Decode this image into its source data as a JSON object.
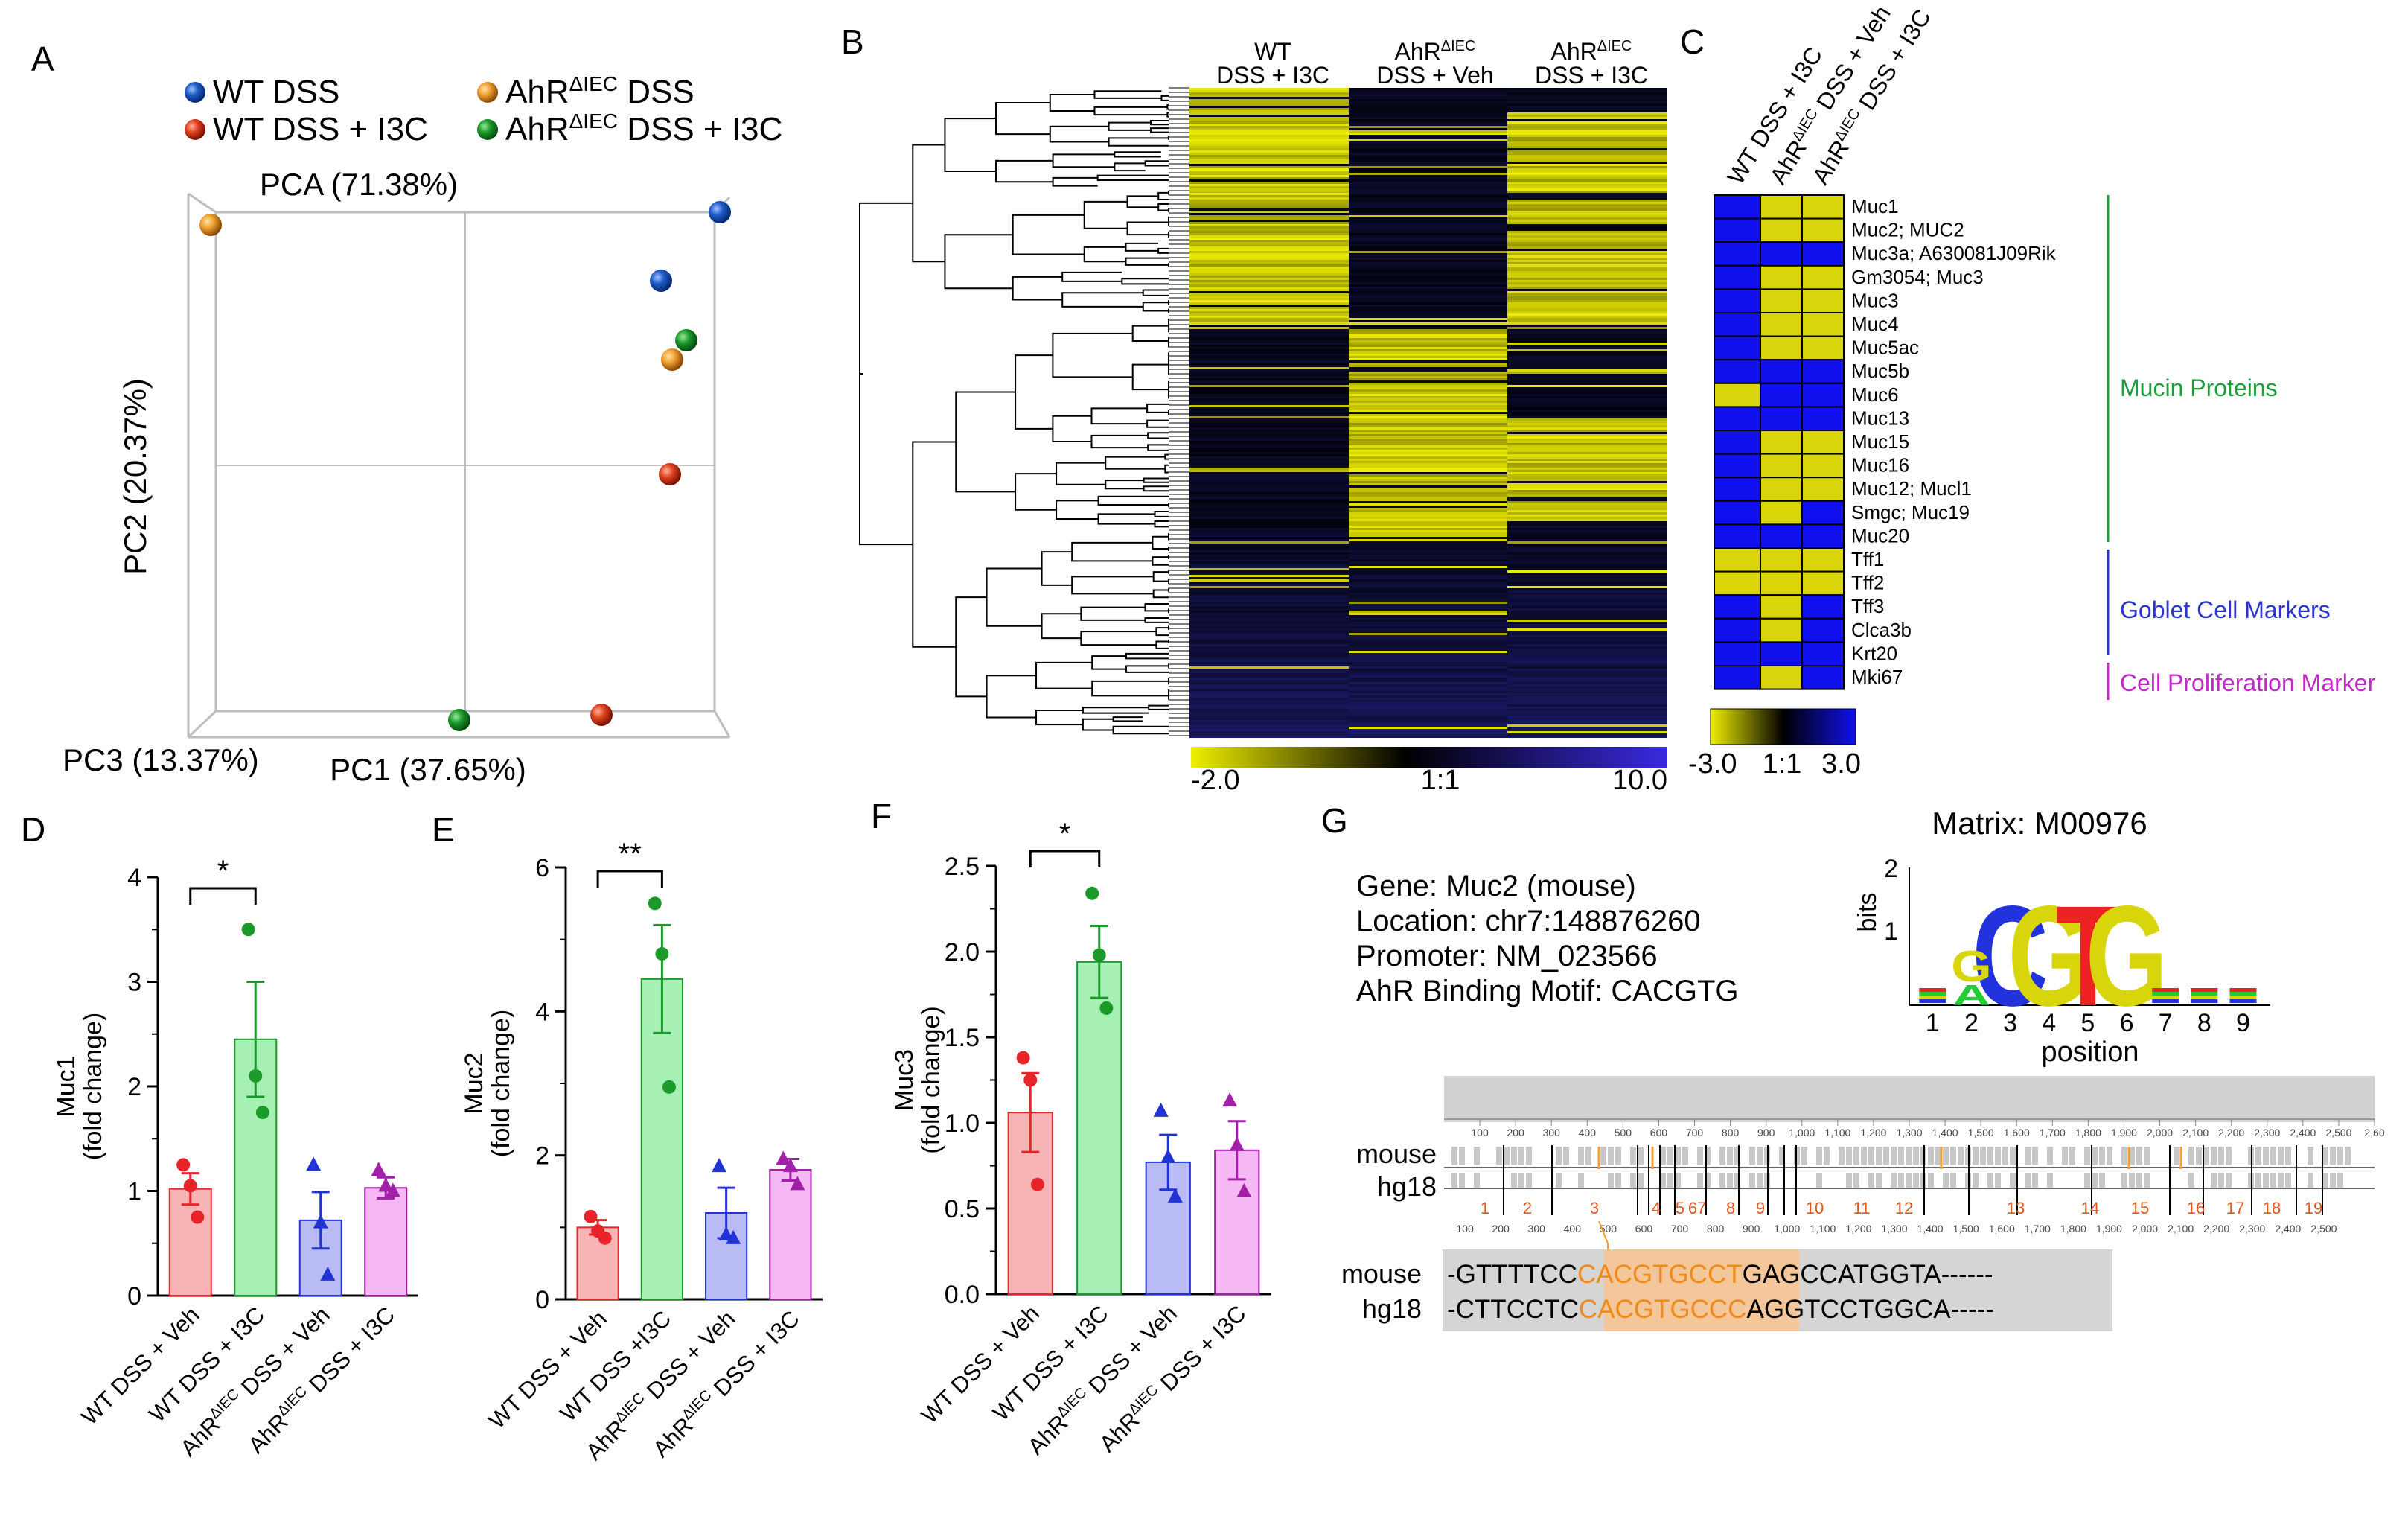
{
  "colors": {
    "red": "#e8242a",
    "green": "#1b9a2a",
    "blue": "#2132d6",
    "purple": "#a21fa8",
    "orange": "#f3a02c",
    "yellow": "#d8d60a",
    "navy": "#0b0b5a",
    "gene_green": "#1c9e3a",
    "gene_blue": "#2b34cc",
    "gene_magenta": "#c22ac9"
  },
  "panel_labels": {
    "a": "A",
    "b": "B",
    "c": "C",
    "d": "D",
    "e": "E",
    "f": "F",
    "g": "G"
  },
  "pca": {
    "title": "PCA (71.38%)",
    "pc1": "PC1 (37.65%)",
    "pc2": "PC2 (20.37%)",
    "pc3": "PC3 (13.37%)",
    "legend": [
      {
        "label": "WT DSS",
        "sup": "",
        "rest": "",
        "color": "blue"
      },
      {
        "label": "AhR",
        "sup": "ΔIEC",
        "rest": " DSS",
        "color": "orange"
      },
      {
        "label": "WT DSS + I3C",
        "sup": "",
        "rest": "",
        "color": "red"
      },
      {
        "label": "AhR",
        "sup": "ΔIEC",
        "rest": " DSS + I3C",
        "color": "green"
      }
    ]
  },
  "heatmap_b": {
    "col1": [
      "WT",
      "DSS + I3C"
    ],
    "col2": [
      "AhR",
      "ΔIEC",
      "DSS + Veh"
    ],
    "col3": [
      "AhR",
      "ΔIEC",
      "DSS + I3C"
    ],
    "scale": {
      "min": "-2.0",
      "mid": "1:1",
      "max": "10.0"
    }
  },
  "heatmap_c": {
    "columns": [
      {
        "pre": "WT DSS + I3C",
        "sup": "",
        "post": ""
      },
      {
        "pre": "AhR",
        "sup": "ΔIEC",
        "post": " DSS + Veh"
      },
      {
        "pre": "AhR",
        "sup": "ΔIEC",
        "post": " DSS + I3C"
      }
    ],
    "genes": [
      "Muc1",
      "Muc2; MUC2",
      "Muc3a; A630081J09Rik",
      "Gm3054; Muc3",
      "Muc3",
      "Muc4",
      "Muc5ac",
      "Muc5b",
      "Muc6",
      "Muc13",
      "Muc15",
      "Muc16",
      "Muc12; Mucl1",
      "Smgc; Muc19",
      "Muc20",
      "Tff1",
      "Tff2",
      "Tff3",
      "Clca3b",
      "Krt20",
      "Mki67"
    ],
    "cells": [
      [
        "b",
        "y",
        "y"
      ],
      [
        "b",
        "y",
        "y"
      ],
      [
        "b",
        "b",
        "b"
      ],
      [
        "b",
        "y",
        "y"
      ],
      [
        "b",
        "y",
        "y"
      ],
      [
        "b",
        "y",
        "y"
      ],
      [
        "b",
        "y",
        "y"
      ],
      [
        "b",
        "b",
        "b"
      ],
      [
        "y",
        "b",
        "b"
      ],
      [
        "b",
        "b",
        "b"
      ],
      [
        "b",
        "y",
        "y"
      ],
      [
        "b",
        "y",
        "y"
      ],
      [
        "b",
        "y",
        "y"
      ],
      [
        "b",
        "y",
        "b"
      ],
      [
        "b",
        "b",
        "b"
      ],
      [
        "y",
        "y",
        "y"
      ],
      [
        "y",
        "y",
        "y"
      ],
      [
        "b",
        "y",
        "b"
      ],
      [
        "b",
        "y",
        "b"
      ],
      [
        "b",
        "b",
        "b"
      ],
      [
        "b",
        "y",
        "b"
      ]
    ],
    "groups": [
      "Mucin Proteins",
      "Goblet Cell Markers",
      "Cell Proliferation Marker"
    ],
    "scale": {
      "min": "-3.0",
      "mid": "1:1",
      "max": "3.0"
    }
  },
  "chart_data": [
    {
      "panel": "D",
      "type": "bar",
      "ylabel_gene": "Muc1",
      "ylabel_unit": "(fold change)",
      "ylim": [
        0,
        4
      ],
      "yticks": [
        "0",
        "1",
        "2",
        "3",
        "4"
      ],
      "categories": [
        "WT DSS + Veh",
        "WT DSS + I3C",
        "AhR|ΔIEC| DSS + Veh",
        "AhR|ΔIEC| DSS + I3C"
      ],
      "means": [
        1.02,
        2.45,
        0.72,
        1.03
      ],
      "sem": [
        0.15,
        0.55,
        0.27,
        0.1
      ],
      "points": [
        [
          1.25,
          1.05,
          0.75
        ],
        [
          3.5,
          2.1,
          1.75
        ],
        [
          1.25,
          0.7,
          0.2
        ],
        [
          1.2,
          1.05,
          1.0
        ]
      ],
      "sig": {
        "from": 0,
        "to": 1,
        "label": "*"
      }
    },
    {
      "panel": "E",
      "type": "bar",
      "ylabel_gene": "Muc2",
      "ylabel_unit": "(fold change)",
      "ylim": [
        0,
        6
      ],
      "yticks": [
        "0",
        "2",
        "4",
        "6"
      ],
      "categories": [
        "WT DSS + Veh",
        "WT DSS +I3C",
        "AhR|ΔIEC| DSS + Veh",
        "AhR|ΔIEC| DSS + I3C"
      ],
      "means": [
        1.0,
        4.45,
        1.2,
        1.8
      ],
      "sem": [
        0.1,
        0.75,
        0.35,
        0.15
      ],
      "points": [
        [
          1.15,
          0.95,
          0.85
        ],
        [
          5.5,
          4.8,
          2.95
        ],
        [
          1.85,
          0.9,
          0.85
        ],
        [
          1.95,
          1.85,
          1.6
        ]
      ],
      "sig": {
        "from": 0,
        "to": 1,
        "label": "**"
      }
    },
    {
      "panel": "F",
      "type": "bar",
      "ylabel_gene": "Muc3",
      "ylabel_unit": "(fold change)",
      "ylim": [
        0,
        2.5
      ],
      "yticks": [
        "0.0",
        "0.5",
        "1.0",
        "1.5",
        "2.0",
        "2.5"
      ],
      "categories": [
        "WT DSS + Veh",
        "WT DSS + I3C",
        "AhR|ΔIEC| DSS + Veh",
        "AhR|ΔIEC| DSS + I3C"
      ],
      "means": [
        1.06,
        1.94,
        0.77,
        0.84
      ],
      "sem": [
        0.23,
        0.21,
        0.16,
        0.17
      ],
      "points": [
        [
          1.38,
          1.25,
          0.64
        ],
        [
          2.34,
          1.98,
          1.67
        ],
        [
          1.07,
          0.8,
          0.57
        ],
        [
          1.13,
          0.87,
          0.6
        ]
      ],
      "sig": {
        "from": 0,
        "to": 1,
        "label": "*"
      }
    }
  ],
  "panel_g": {
    "gene": "Gene: Muc2 (mouse)",
    "location": "Location: chr7:148876260",
    "promoter": "Promoter: NM_023566",
    "motif": "AhR Binding Motif: CACGTG",
    "matrix": "Matrix: M00976",
    "logo_ylabel": "bits",
    "logo_yticks": [
      "2",
      "1"
    ],
    "logo_xlabel": "position",
    "positions": [
      "1",
      "2",
      "3",
      "4",
      "5",
      "6",
      "7",
      "8",
      "9"
    ],
    "logo_letters": [
      "G",
      "A",
      "C",
      "G",
      "T",
      "G"
    ],
    "species": [
      "mouse",
      "hg18"
    ],
    "seq_mouse": [
      "-GTTTTCC",
      "CACGTGCCT",
      "GAGCCATGGTA------"
    ],
    "seq_hg18": [
      "-CTTCCTC",
      "CACGTGCCC",
      "AGGTCCTGGCA-----"
    ],
    "ruler": [
      "100",
      "200",
      "300",
      "400",
      "500",
      "600",
      "700",
      "800",
      "900",
      "1,000",
      "1,100",
      "1,200",
      "1,300",
      "1,400",
      "1,500",
      "1,600",
      "1,700",
      "1,800",
      "1,900",
      "2,000",
      "2,100",
      "2,200",
      "2,300",
      "2,400",
      "2,500",
      "2,60"
    ],
    "blocks": [
      "1",
      "2",
      "3",
      "4",
      "5",
      "6",
      "7",
      "8",
      "9",
      "10",
      "11",
      "12",
      "13",
      "14",
      "15",
      "16",
      "17",
      "18",
      "19"
    ]
  }
}
